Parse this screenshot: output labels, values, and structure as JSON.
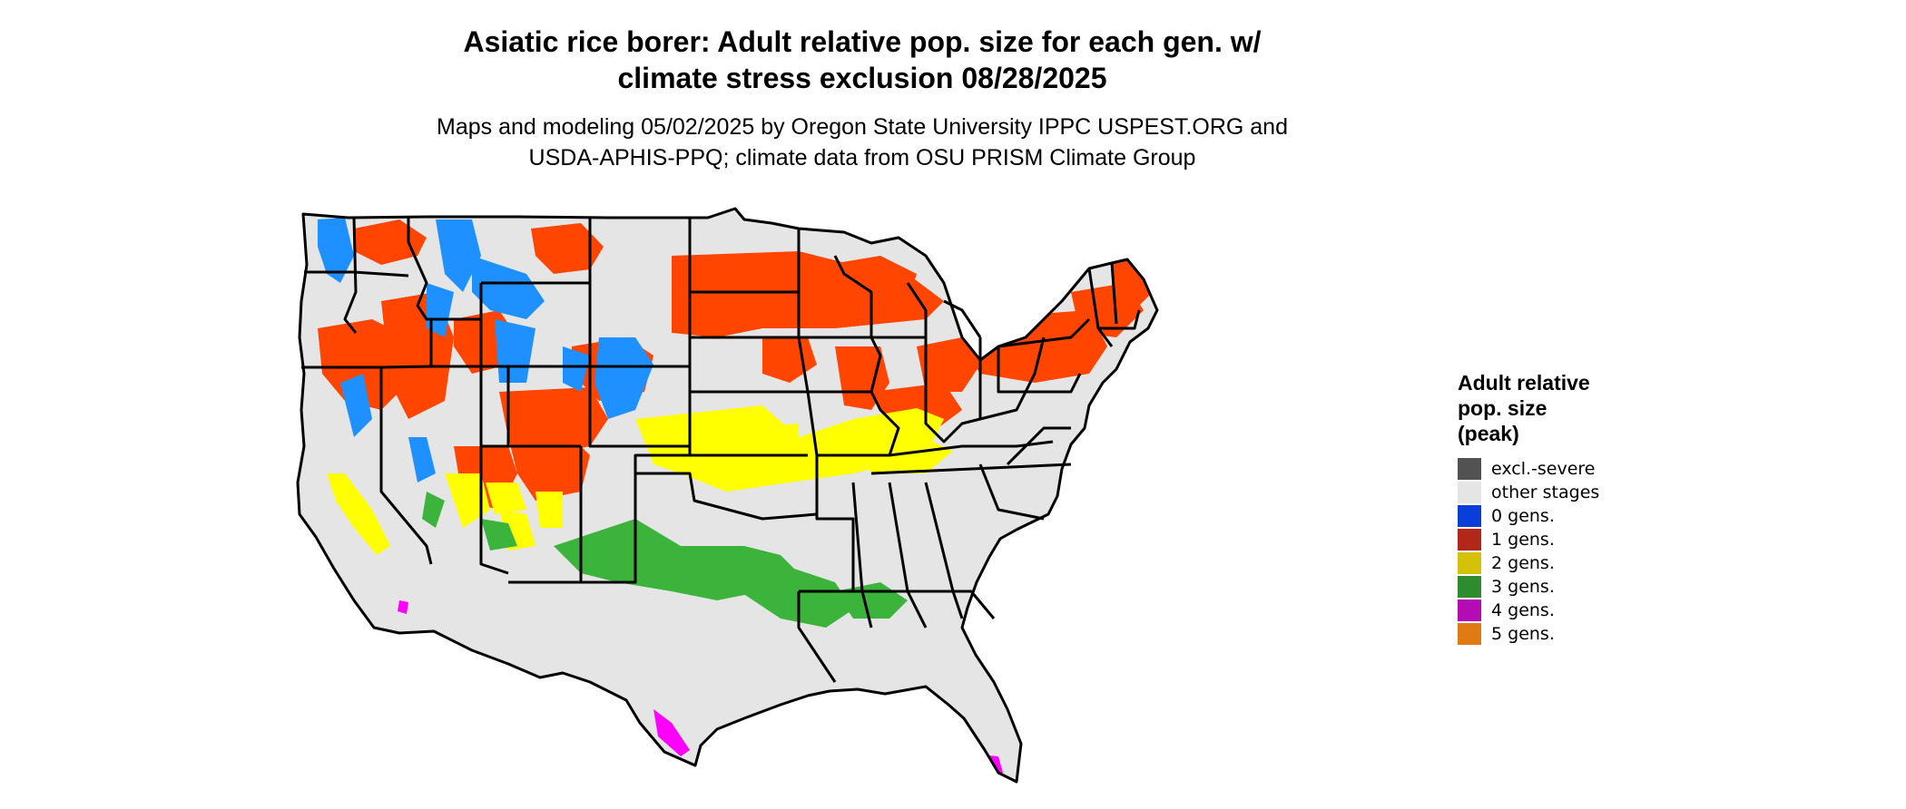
{
  "title": {
    "line1": "Asiatic rice borer: Adult relative pop. size for each gen. w/",
    "line2": "climate stress exclusion 08/28/2025"
  },
  "subtitle": {
    "line1": "Maps and modeling 05/02/2025 by Oregon State University IPPC USPEST.ORG and",
    "line2": "USDA-APHIS-PPQ; climate data from OSU PRISM Climate Group"
  },
  "legend": {
    "title_line1": "Adult relative",
    "title_line2": "pop. size",
    "title_line3": "(peak)",
    "items": [
      {
        "label": "excl.-severe",
        "color": "#525252"
      },
      {
        "label": "other stages",
        "color": "#e5e5e5"
      },
      {
        "label": "0 gens.",
        "color": "#0a3ed8"
      },
      {
        "label": "1 gens.",
        "color": "#b1281b"
      },
      {
        "label": "2 gens.",
        "color": "#d4c10a"
      },
      {
        "label": "3 gens.",
        "color": "#2e8b2e"
      },
      {
        "label": "4 gens.",
        "color": "#b40cb4"
      },
      {
        "label": "5 gens.",
        "color": "#e07b14"
      }
    ]
  },
  "map_colors": {
    "land": "#e5e5e5",
    "one_gen": "#ff4500",
    "zero_gen": "#1e90ff",
    "two_gen": "#ffff00",
    "three_gen": "#3cb43c",
    "four_gen": "#ff00ff",
    "border": "#000000"
  }
}
